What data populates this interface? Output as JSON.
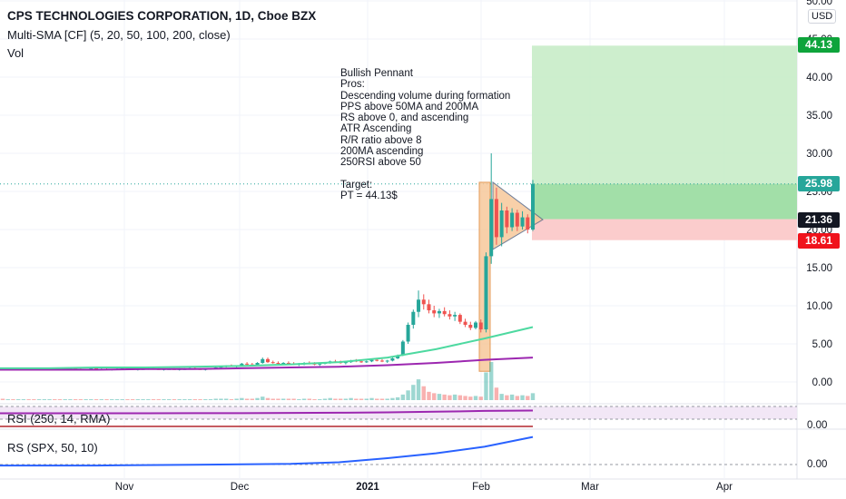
{
  "header": {
    "title": "CPS TECHNOLOGIES CORPORATION, 1D, Cboe BZX",
    "indicator": "Multi-SMA [CF] (5, 20, 50, 100, 200, close)",
    "volume_label": "Vol",
    "currency": "USD"
  },
  "annotation": {
    "text": "Bullish Pennant\nPros:\nDescending volume during formation\nPPS above 50MA and 200MA\nRS above 0, and ascending\nATR Ascending\nR/R ratio above 8\n200MA ascending\n250RSI above 50\n\nTarget:\nPT = 44.13$"
  },
  "price_tags": {
    "target": "44.13",
    "last": "25.98",
    "entry": "21.36",
    "stop": "18.61"
  },
  "colors": {
    "up": "#26a69a",
    "down": "#ef5350",
    "sma_short": "#4dd9a0",
    "sma_long": "#9c27b0",
    "target_tag": "#0ea43b",
    "last_tag": "#26a69a",
    "entry_tag": "#131722",
    "stop_tag": "#f0131c",
    "profit_zone": "#c8ecc8",
    "loss_zone": "#fbc9c9",
    "pennant": "#f7c89b",
    "rsi_band": "#f1e4f5"
  },
  "panes": {
    "rsi_label": "RSI (250, 14, RMA)",
    "rs_label": "RS (SPX, 50, 10)",
    "rsi_axis": "0.00",
    "rs_axis": "0.00"
  },
  "chart_data": {
    "type": "candlestick",
    "title": "CPS TECHNOLOGIES CORPORATION, 1D, Cboe BZX",
    "y_ticks": [
      "50.00",
      "45.00",
      "40.00",
      "35.00",
      "30.00",
      "25.00",
      "20.00",
      "15.00",
      "10.00",
      "5.00",
      "0.00"
    ],
    "y_tick_values": [
      50,
      45,
      40,
      35,
      30,
      25,
      20,
      15,
      10,
      5,
      0
    ],
    "x_ticks": [
      "Nov",
      "Dec",
      "2021",
      "Feb",
      "Mar",
      "Apr"
    ],
    "ylim": [
      -1,
      50
    ],
    "levels": {
      "target": 44.13,
      "last": 25.98,
      "entry": 21.36,
      "stop": 18.61
    },
    "pattern": "Bullish Pennant",
    "sma_50": [
      1.8,
      1.8,
      1.9,
      1.9,
      2.0,
      2.1,
      2.3,
      2.6,
      3.2,
      4.3,
      5.7,
      7.2
    ],
    "sma_200": [
      1.6,
      1.6,
      1.6,
      1.7,
      1.7,
      1.8,
      1.9,
      2.0,
      2.2,
      2.5,
      2.9,
      3.2
    ],
    "candles": [
      [
        1.7,
        1.8,
        1.5,
        1.6
      ],
      [
        1.6,
        1.9,
        1.5,
        1.8
      ],
      [
        1.8,
        1.9,
        1.6,
        1.7
      ],
      [
        1.7,
        1.8,
        1.6,
        1.7
      ],
      [
        1.7,
        1.9,
        1.6,
        1.8
      ],
      [
        1.8,
        1.9,
        1.7,
        1.7
      ],
      [
        1.7,
        1.8,
        1.6,
        1.6
      ],
      [
        1.6,
        1.8,
        1.5,
        1.7
      ],
      [
        1.7,
        1.8,
        1.6,
        1.7
      ],
      [
        1.7,
        1.9,
        1.6,
        1.8
      ],
      [
        1.8,
        1.9,
        1.7,
        1.7
      ],
      [
        1.7,
        1.8,
        1.6,
        1.6
      ],
      [
        1.6,
        1.7,
        1.5,
        1.7
      ],
      [
        1.7,
        1.8,
        1.6,
        1.8
      ],
      [
        1.8,
        1.9,
        1.7,
        1.7
      ],
      [
        1.7,
        1.8,
        1.6,
        1.6
      ],
      [
        1.6,
        1.7,
        1.5,
        1.7
      ],
      [
        1.7,
        1.8,
        1.6,
        1.8
      ],
      [
        1.8,
        1.9,
        1.7,
        1.7
      ],
      [
        1.7,
        1.8,
        1.6,
        1.7
      ],
      [
        1.7,
        1.8,
        1.6,
        1.6
      ],
      [
        1.6,
        1.7,
        1.5,
        1.7
      ],
      [
        1.7,
        1.8,
        1.6,
        1.7
      ],
      [
        1.7,
        1.9,
        1.6,
        1.8
      ],
      [
        1.8,
        1.9,
        1.7,
        1.7
      ],
      [
        1.7,
        1.8,
        1.6,
        1.6
      ],
      [
        1.6,
        1.8,
        1.5,
        1.7
      ],
      [
        1.7,
        1.8,
        1.6,
        1.7
      ],
      [
        1.7,
        1.9,
        1.6,
        1.8
      ],
      [
        1.8,
        1.9,
        1.6,
        1.7
      ],
      [
        1.7,
        1.8,
        1.6,
        1.6
      ],
      [
        1.6,
        1.7,
        1.5,
        1.7
      ],
      [
        1.7,
        1.8,
        1.6,
        1.7
      ],
      [
        1.7,
        1.8,
        1.6,
        1.6
      ],
      [
        1.6,
        1.8,
        1.5,
        1.7
      ],
      [
        1.7,
        1.8,
        1.6,
        1.7
      ],
      [
        1.7,
        1.9,
        1.6,
        1.8
      ],
      [
        1.8,
        1.9,
        1.7,
        1.7
      ],
      [
        1.7,
        1.8,
        1.6,
        1.6
      ],
      [
        1.6,
        1.7,
        1.5,
        1.7
      ],
      [
        1.7,
        1.8,
        1.6,
        1.8
      ],
      [
        1.8,
        2.0,
        1.7,
        1.9
      ],
      [
        1.9,
        2.1,
        1.8,
        2.0
      ],
      [
        2.0,
        2.2,
        1.9,
        2.1
      ],
      [
        2.1,
        2.3,
        2.0,
        2.0
      ],
      [
        2.0,
        2.2,
        1.9,
        2.2
      ],
      [
        2.2,
        2.5,
        2.1,
        2.4
      ],
      [
        2.4,
        2.6,
        2.2,
        2.3
      ],
      [
        2.3,
        2.5,
        2.1,
        2.2
      ],
      [
        2.2,
        2.6,
        2.1,
        2.5
      ],
      [
        2.5,
        3.2,
        2.4,
        3.0
      ],
      [
        3.0,
        3.2,
        2.5,
        2.6
      ],
      [
        2.6,
        2.8,
        2.4,
        2.5
      ],
      [
        2.5,
        2.7,
        2.3,
        2.4
      ],
      [
        2.4,
        2.6,
        2.2,
        2.5
      ],
      [
        2.5,
        2.7,
        2.3,
        2.4
      ],
      [
        2.4,
        2.6,
        2.2,
        2.3
      ],
      [
        2.3,
        2.5,
        2.1,
        2.4
      ],
      [
        2.4,
        2.6,
        2.2,
        2.5
      ],
      [
        2.5,
        2.7,
        2.3,
        2.4
      ],
      [
        2.4,
        2.6,
        2.2,
        2.3
      ],
      [
        2.3,
        2.5,
        2.1,
        2.4
      ],
      [
        2.4,
        2.6,
        2.3,
        2.5
      ],
      [
        2.5,
        2.8,
        2.4,
        2.7
      ],
      [
        2.7,
        2.9,
        2.5,
        2.6
      ],
      [
        2.6,
        2.8,
        2.4,
        2.5
      ],
      [
        2.5,
        2.7,
        2.3,
        2.6
      ],
      [
        2.6,
        2.9,
        2.5,
        2.8
      ],
      [
        2.8,
        3.0,
        2.6,
        2.7
      ],
      [
        2.7,
        2.9,
        2.5,
        2.6
      ],
      [
        2.6,
        2.8,
        2.5,
        2.7
      ],
      [
        2.7,
        3.0,
        2.6,
        2.9
      ],
      [
        2.9,
        3.1,
        2.7,
        2.8
      ],
      [
        2.8,
        3.0,
        2.6,
        2.7
      ],
      [
        2.7,
        2.9,
        2.5,
        2.8
      ],
      [
        2.8,
        3.2,
        2.7,
        3.1
      ],
      [
        3.1,
        3.6,
        3.0,
        3.5
      ],
      [
        3.5,
        5.5,
        3.4,
        5.3
      ],
      [
        5.3,
        7.8,
        5.0,
        7.5
      ],
      [
        7.5,
        9.5,
        7.0,
        9.2
      ],
      [
        9.2,
        12.0,
        8.5,
        10.8
      ],
      [
        10.8,
        11.5,
        9.5,
        10.2
      ],
      [
        10.2,
        10.8,
        9.0,
        9.4
      ],
      [
        9.4,
        10.0,
        8.5,
        9.0
      ],
      [
        9.0,
        9.6,
        8.4,
        9.3
      ],
      [
        9.3,
        9.8,
        8.6,
        8.9
      ],
      [
        8.9,
        9.4,
        8.2,
        8.6
      ],
      [
        8.6,
        9.2,
        8.0,
        8.8
      ],
      [
        8.8,
        9.0,
        7.6,
        7.9
      ],
      [
        7.9,
        8.3,
        7.2,
        7.5
      ],
      [
        7.5,
        7.9,
        6.8,
        7.1
      ],
      [
        7.1,
        8.0,
        6.9,
        7.8
      ],
      [
        7.8,
        8.2,
        6.5,
        6.9
      ],
      [
        6.9,
        17.0,
        6.5,
        16.5
      ],
      [
        16.5,
        30.0,
        15.5,
        24.0
      ],
      [
        24.0,
        25.5,
        18.0,
        19.0
      ],
      [
        19.0,
        23.5,
        17.8,
        22.5
      ],
      [
        22.5,
        23.0,
        19.5,
        20.3
      ],
      [
        20.3,
        22.8,
        19.8,
        22.2
      ],
      [
        22.2,
        22.6,
        19.8,
        20.4
      ],
      [
        20.4,
        22.4,
        20.0,
        21.6
      ],
      [
        21.6,
        22.0,
        19.5,
        20.0
      ],
      [
        20.0,
        26.5,
        19.8,
        25.98
      ]
    ],
    "volume": [
      2,
      1,
      1,
      1,
      1,
      1,
      1,
      1,
      1,
      1,
      1,
      1,
      1,
      1,
      1,
      1,
      1,
      1,
      1,
      1,
      1,
      1,
      1,
      1,
      1,
      1,
      1,
      1,
      1,
      1,
      1,
      1,
      1,
      1,
      1,
      1,
      1,
      1,
      1,
      1,
      1,
      2,
      2,
      2,
      1,
      2,
      3,
      2,
      2,
      3,
      5,
      3,
      2,
      2,
      2,
      2,
      2,
      1,
      2,
      2,
      1,
      1,
      2,
      3,
      2,
      2,
      2,
      3,
      2,
      2,
      2,
      3,
      2,
      2,
      2,
      3,
      4,
      8,
      14,
      22,
      30,
      20,
      12,
      10,
      9,
      8,
      7,
      8,
      7,
      6,
      5,
      6,
      5,
      40,
      55,
      18,
      9,
      7,
      8,
      6,
      7,
      6,
      10
    ],
    "rsi": [
      0.2,
      0.2,
      0.2,
      0.2,
      0.3,
      0.3,
      0.4,
      0.5,
      0.7,
      1.0,
      1.4,
      1.6
    ],
    "rs": [
      0.1,
      0.1,
      0.1,
      0.15,
      0.2,
      0.25,
      0.3,
      0.5,
      1.0,
      1.6,
      2.4,
      3.6
    ]
  }
}
